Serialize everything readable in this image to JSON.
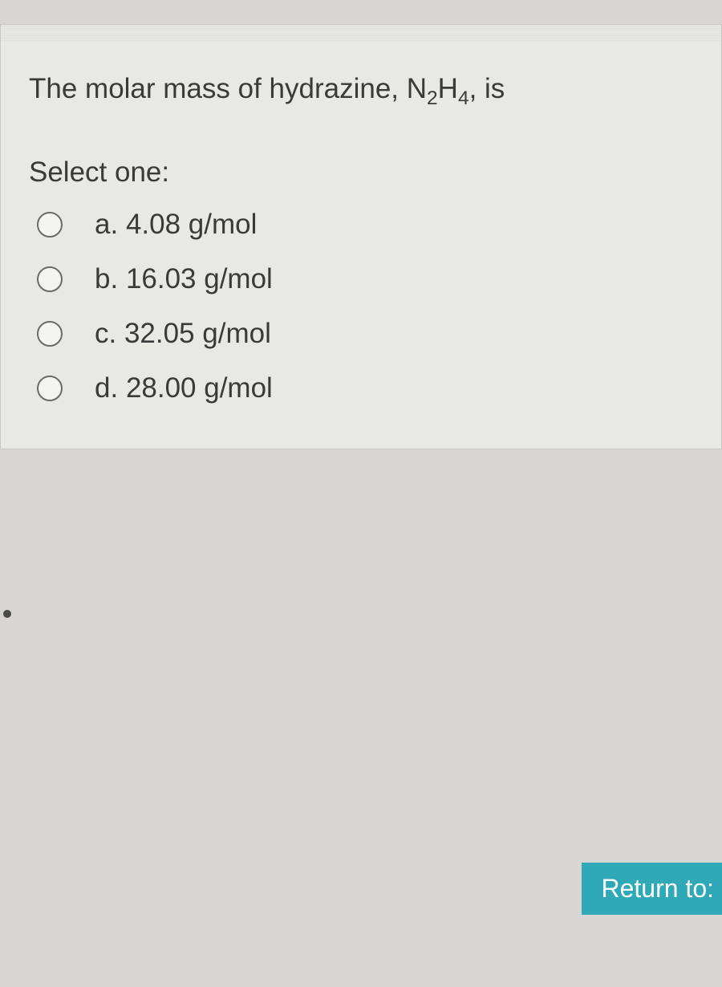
{
  "colors": {
    "page_background": "#d8d6d3",
    "panel_background": "#e8e8e4",
    "panel_border": "#c8c8c4",
    "text": "#3a3a3a",
    "radio_border": "#6a6a66",
    "radio_fill": "#f4f4f0",
    "button_bg": "#2fa8b8",
    "button_text": "#ffffff"
  },
  "typography": {
    "question_fontsize": 35,
    "select_fontsize": 35,
    "option_fontsize": 35,
    "button_fontsize": 32,
    "font_family": "Verdana, Geneva, sans-serif"
  },
  "question": {
    "text_prefix": "The molar mass of hydrazine, N",
    "sub1": "2",
    "mid": "H",
    "sub2": "4",
    "suffix": ", is"
  },
  "select_label": "Select one:",
  "options": [
    {
      "letter": "a.",
      "text": "4.08 g/mol",
      "selected": false
    },
    {
      "letter": "b.",
      "text": "16.03 g/mol",
      "selected": false
    },
    {
      "letter": "c.",
      "text": "32.05 g/mol",
      "selected": false
    },
    {
      "letter": "d.",
      "text": "28.00 g/mol",
      "selected": false
    }
  ],
  "button": {
    "label": "Return to:"
  }
}
